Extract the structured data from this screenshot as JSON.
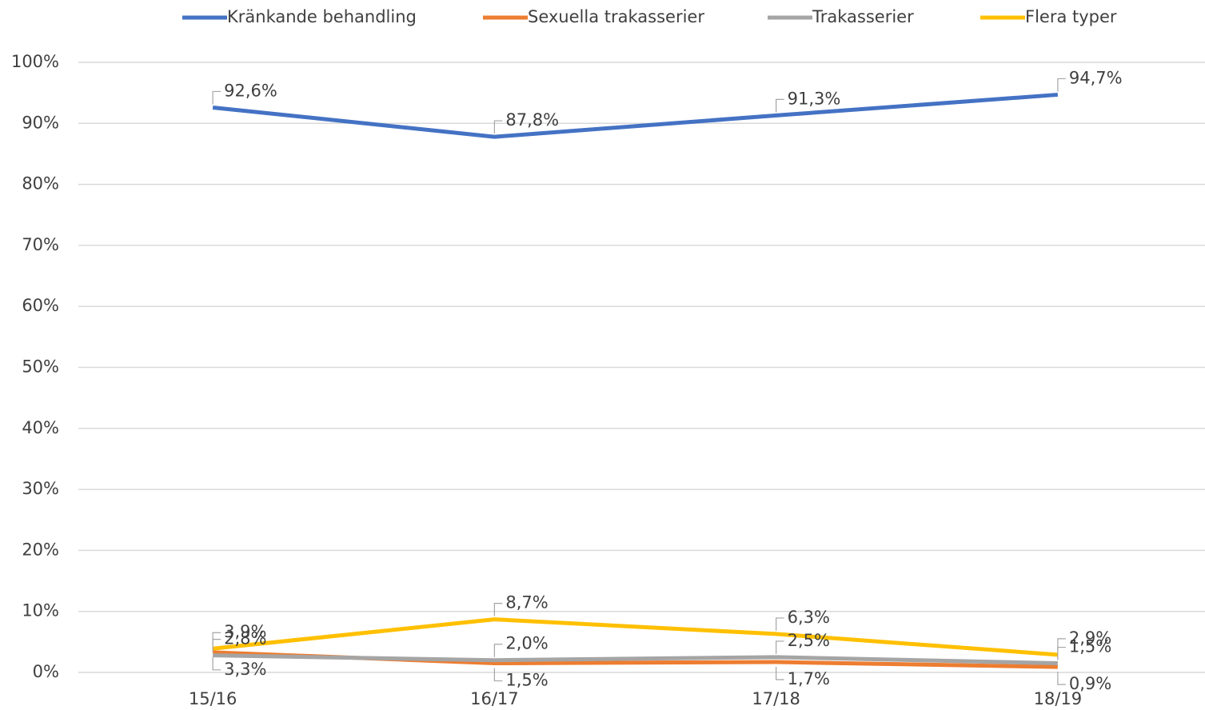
{
  "chart_data": {
    "type": "line",
    "categories": [
      "15/16",
      "16/17",
      "17/18",
      "18/19"
    ],
    "series": [
      {
        "name": "Kränkande behandling",
        "color": "#4472c4",
        "values": [
          92.6,
          87.8,
          91.3,
          94.7
        ],
        "value_labels": [
          "92,6%",
          "87,8%",
          "91,3%",
          "94,7%"
        ]
      },
      {
        "name": "Sexuella trakasserier",
        "color": "#ed7d31",
        "values": [
          3.3,
          1.5,
          1.7,
          0.9
        ],
        "value_labels": [
          "3,3%",
          "1,5%",
          "1,7%",
          "0,9%"
        ]
      },
      {
        "name": "Trakasserier",
        "color": "#a5a5a5",
        "values": [
          2.8,
          2.0,
          2.5,
          1.5
        ],
        "value_labels": [
          "2,8%",
          "2,0%",
          "2,5%",
          "1,5%"
        ]
      },
      {
        "name": "Flera typer",
        "color": "#ffc000",
        "values": [
          3.9,
          8.7,
          6.3,
          2.9
        ],
        "value_labels": [
          "3,9%",
          "8,7%",
          "6,3%",
          "2,9%"
        ]
      }
    ],
    "ylim": [
      0,
      100
    ],
    "yticks": [
      {
        "value": 0,
        "label": "0%"
      },
      {
        "value": 10,
        "label": "10%"
      },
      {
        "value": 20,
        "label": "20%"
      },
      {
        "value": 30,
        "label": "30%"
      },
      {
        "value": 40,
        "label": "40%"
      },
      {
        "value": 50,
        "label": "50%"
      },
      {
        "value": 60,
        "label": "60%"
      },
      {
        "value": 70,
        "label": "70%"
      },
      {
        "value": 80,
        "label": "80%"
      },
      {
        "value": 90,
        "label": "90%"
      },
      {
        "value": 100,
        "label": "100%"
      }
    ],
    "grid": true,
    "legend": "top"
  }
}
